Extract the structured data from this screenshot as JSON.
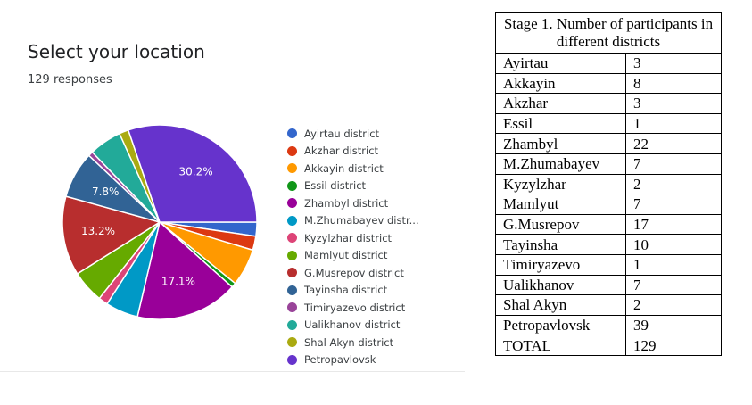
{
  "form": {
    "title": "Select your location",
    "responses": "129 responses"
  },
  "chart_data": {
    "type": "pie",
    "categories": [
      "Ayirtau district",
      "Akzhar district",
      "Akkayin district",
      "Essil district",
      "Zhambyl district",
      "M.Zhumabayev distr...",
      "Kyzylzhar district",
      "Mamlyut district",
      "G.Musrepov district",
      "Tayinsha district",
      "Timiryazevo district",
      "Ualikhanov district",
      "Shal Akyn district",
      "Petropavlovsk"
    ],
    "values": [
      3,
      3,
      8,
      1,
      22,
      7,
      2,
      7,
      17,
      10,
      1,
      7,
      2,
      39
    ],
    "colors": [
      "#3366cc",
      "#dc3912",
      "#ff9900",
      "#109618",
      "#990099",
      "#0099c6",
      "#dd4477",
      "#66aa00",
      "#b82e2e",
      "#316395",
      "#994499",
      "#22aa99",
      "#aaaa11",
      "#6633cc"
    ],
    "slice_labels": [
      {
        "index": 13,
        "text": "30.2%"
      },
      {
        "index": 4,
        "text": "17.1%"
      },
      {
        "index": 8,
        "text": "13.2%"
      },
      {
        "index": 9,
        "text": "7.8%"
      }
    ]
  },
  "table": {
    "header": "Stage 1. Number of participants in different districts",
    "rows": [
      [
        "Ayirtau",
        "3"
      ],
      [
        "Akkayin",
        "8"
      ],
      [
        "Akzhar",
        "3"
      ],
      [
        "Essil",
        "1"
      ],
      [
        "Zhambyl",
        "22"
      ],
      [
        "M.Zhumabayev",
        "7"
      ],
      [
        "Kyzylzhar",
        "2"
      ],
      [
        "Mamlyut",
        "7"
      ],
      [
        "G.Musrepov",
        "17"
      ],
      [
        "Tayinsha",
        "10"
      ],
      [
        "Timiryazevo",
        "1"
      ],
      [
        "Ualikhanov",
        "7"
      ],
      [
        "Shal Akyn",
        "2"
      ],
      [
        "Petropavlovsk",
        "39"
      ],
      [
        "TOTAL",
        "129"
      ]
    ]
  }
}
